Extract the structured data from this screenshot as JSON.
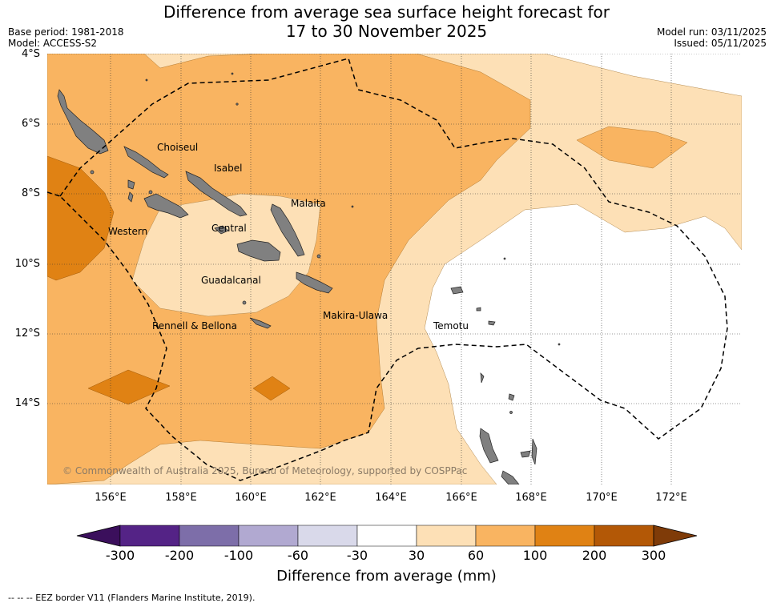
{
  "title": {
    "line1": "Difference from average sea surface height forecast for",
    "line2": "17 to 30 November 2025"
  },
  "meta": {
    "base_period": "Base period: 1981-2018",
    "model": "Model: ACCESS-S2",
    "model_run": "Model run: 03/11/2025",
    "issued": "Issued: 05/11/2025"
  },
  "map": {
    "lat_labels": [
      "4°S",
      "6°S",
      "8°S",
      "10°S",
      "12°S",
      "14°S"
    ],
    "lon_labels": [
      "156°E",
      "158°E",
      "160°E",
      "162°E",
      "164°E",
      "166°E",
      "168°E",
      "170°E",
      "172°E"
    ],
    "places": {
      "choiseul": "Choiseul",
      "isabel": "Isabel",
      "malaita": "Malaita",
      "western": "Western",
      "central": "Central",
      "guadalcanal": "Guadalcanal",
      "makira": "Makira-Ulawa",
      "temotu": "Temotu",
      "rennell": "Rennell & Bellona"
    },
    "copyright": "© Commonwealth of Australia 2025, Bureau of Meteorology, supported by COSPPac",
    "land_color": "#808080",
    "eez_style": "dashed"
  },
  "colorbar": {
    "ticks": [
      "-300",
      "-200",
      "-100",
      "-60",
      "-30",
      "30",
      "60",
      "100",
      "200",
      "300"
    ],
    "colors": [
      "#3b0f5c",
      "#542386",
      "#7d6ea9",
      "#b1a9d1",
      "#d9d9ea",
      "#ffffff",
      "#fde0b6",
      "#f9b461",
      "#e08214",
      "#b35806",
      "#7f3b08"
    ],
    "label": "Difference from average (mm)"
  },
  "legend_note": "--  --  -- EEZ border V11 (Flanders Marine Institute, 2019)."
}
